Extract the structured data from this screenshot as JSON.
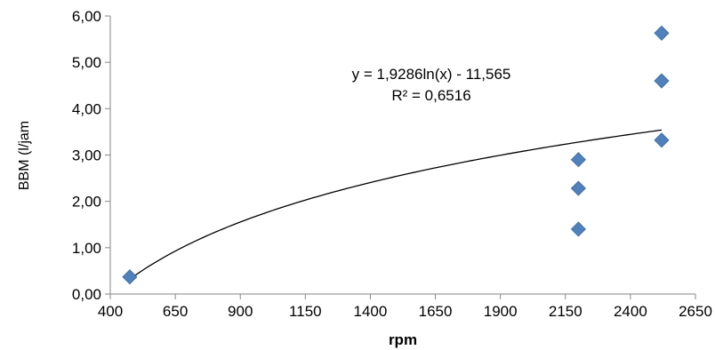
{
  "chart_data": {
    "type": "scatter",
    "title": "",
    "xlabel": "rpm",
    "ylabel": "BBM (l/jam",
    "xlim": [
      400,
      2650
    ],
    "ylim": [
      0,
      6
    ],
    "x_ticks": [
      400,
      650,
      900,
      1150,
      1400,
      1650,
      1900,
      2150,
      2400,
      2650
    ],
    "y_ticks": [
      0,
      1,
      2,
      3,
      4,
      5,
      6
    ],
    "y_tick_labels": [
      "0,00",
      "1,00",
      "2,00",
      "3,00",
      "4,00",
      "5,00",
      "6,00"
    ],
    "grid": false,
    "legend": "none",
    "series": [
      {
        "marker": "diamond",
        "color": "#4f81bd",
        "points": [
          {
            "x": 475,
            "y": 0.37
          },
          {
            "x": 2200,
            "y": 1.4
          },
          {
            "x": 2200,
            "y": 2.28
          },
          {
            "x": 2200,
            "y": 2.9
          },
          {
            "x": 2520,
            "y": 3.32
          },
          {
            "x": 2520,
            "y": 4.6
          },
          {
            "x": 2520,
            "y": 5.63
          }
        ]
      }
    ],
    "trendline": {
      "type": "logarithmic",
      "a": 1.9286,
      "b": -11.565,
      "x_range": [
        480,
        2520
      ],
      "equation_text": "y = 1,9286ln(x) - 11,565",
      "r2_text": "R² = 0,6516",
      "color": "#000000"
    }
  }
}
